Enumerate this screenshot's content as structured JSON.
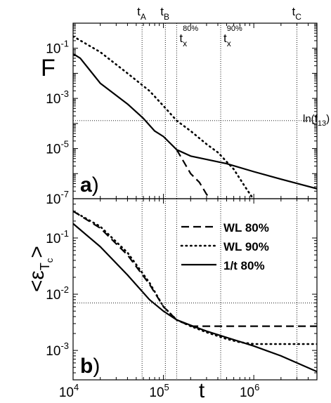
{
  "chart_data": [
    {
      "panel": "a",
      "type": "line",
      "panel_label": "a)",
      "ylabel": "F",
      "xscale": "log",
      "yscale": "log",
      "xlim": [
        10000,
        5000000
      ],
      "ylim": [
        1e-07,
        1
      ],
      "y_tick_labels": [
        "10-7",
        "10-5",
        "10-3",
        "10-1"
      ],
      "top_markers": [
        {
          "label": "tA",
          "x": 58000
        },
        {
          "label": "tB",
          "x": 105000
        },
        {
          "label": "tC",
          "x": 3000000
        }
      ],
      "crossover_markers": [
        {
          "label": "tx",
          "sup": "80%",
          "x": 140000
        },
        {
          "label": "tx",
          "sup": "90%",
          "x": 430000
        }
      ],
      "hline": {
        "label": "ln(f13)",
        "y": 0.00013
      },
      "series": [
        {
          "style": "solid",
          "x": [
            10000,
            12000,
            20000,
            40000,
            60000,
            80000,
            100000,
            140000,
            200000,
            500000,
            1000000,
            2000000,
            5000000
          ],
          "y": [
            0.06,
            0.04,
            0.004,
            0.0006,
            0.00016,
            5e-05,
            3e-05,
            9e-06,
            5e-06,
            2.5e-06,
            1.2e-06,
            6e-07,
            2.5e-07
          ]
        },
        {
          "style": "dashed",
          "x": [
            140000,
            200000,
            250000,
            300000,
            330000
          ],
          "y": [
            9e-06,
            1e-06,
            4.5e-07,
            1.5e-07,
            1e-07
          ]
        },
        {
          "style": "dotted",
          "x": [
            10000,
            20000,
            40000,
            70000,
            100000,
            140000,
            200000,
            300000,
            400000,
            600000,
            800000,
            950000
          ],
          "y": [
            0.3,
            0.07,
            0.01,
            0.002,
            0.0005,
            0.00013,
            5e-05,
            1.5e-05,
            7e-06,
            1.5e-06,
            3e-07,
            1.2e-07
          ]
        }
      ]
    },
    {
      "panel": "b",
      "type": "line",
      "panel_label": "b)",
      "ylabel": "εTc",
      "xlabel": "t",
      "xscale": "log",
      "yscale": "log",
      "xlim": [
        10000,
        5000000
      ],
      "ylim": [
        0.0003,
        0.5
      ],
      "x_tick_labels": [
        "104",
        "105",
        "106"
      ],
      "y_tick_labels": [
        "10-3",
        "10-2",
        "10-1"
      ],
      "hline": {
        "y": 0.007
      },
      "legend": {
        "position": "top-right",
        "entries": [
          {
            "label": "WL 80%",
            "style": "dashed"
          },
          {
            "label": "WL 90%",
            "style": "dotted"
          },
          {
            "label": "1/t  80%",
            "style": "solid"
          }
        ]
      },
      "series": [
        {
          "style": "solid",
          "x": [
            10000,
            20000,
            40000,
            70000,
            100000,
            140000,
            200000,
            300000,
            500000,
            1000000,
            2000000,
            5000000
          ],
          "y": [
            0.18,
            0.07,
            0.022,
            0.008,
            0.005,
            0.0035,
            0.0028,
            0.0022,
            0.0017,
            0.0012,
            0.0008,
            0.00042
          ]
        },
        {
          "style": "dashed",
          "x": [
            10000,
            20000,
            40000,
            70000,
            100000,
            140000,
            200000,
            300000,
            500000,
            1000000,
            5000000
          ],
          "y": [
            0.3,
            0.15,
            0.05,
            0.015,
            0.006,
            0.0035,
            0.0027,
            0.0027,
            0.0027,
            0.0027,
            0.0027
          ]
        },
        {
          "style": "dotted",
          "x": [
            10000,
            20000,
            40000,
            70000,
            100000,
            140000,
            200000,
            300000,
            500000,
            700000,
            1000000,
            5000000
          ],
          "y": [
            0.3,
            0.16,
            0.055,
            0.016,
            0.006,
            0.0035,
            0.0027,
            0.0021,
            0.0016,
            0.0014,
            0.0013,
            0.0013
          ]
        }
      ]
    }
  ]
}
